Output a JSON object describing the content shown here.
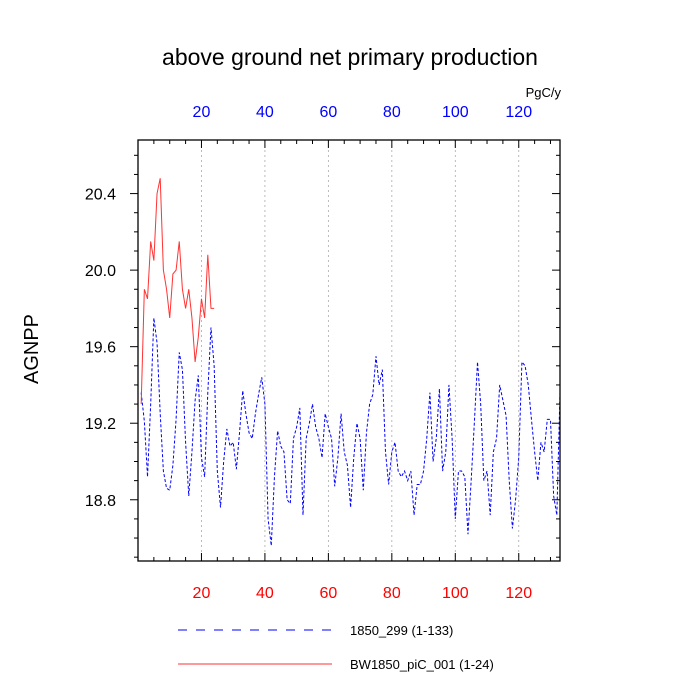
{
  "chart_data": {
    "type": "line",
    "title": "above ground net primary production",
    "ylabel": "AGNPP",
    "units": "PgC/y",
    "xlim": [
      0,
      133
    ],
    "ylim": [
      18.48,
      20.68
    ],
    "x_ticks_bottom": [
      "20",
      "40",
      "60",
      "80",
      "100",
      "120"
    ],
    "x_ticks_top": [
      "20",
      "40",
      "60",
      "80",
      "100",
      "120"
    ],
    "y_ticks": [
      "18.8",
      "19.2",
      "19.6",
      "20.0",
      "20.4"
    ],
    "series": [
      {
        "name": "1850_299 (1-133)",
        "color": "#0000ff",
        "style": "dashed",
        "x_start": 1,
        "values": [
          19.36,
          19.21,
          18.92,
          19.3,
          19.75,
          19.62,
          19.25,
          18.95,
          18.86,
          18.85,
          18.98,
          19.22,
          19.57,
          19.48,
          19.1,
          18.82,
          19.05,
          19.32,
          19.45,
          19.02,
          18.92,
          19.36,
          19.7,
          19.5,
          18.95,
          18.76,
          19.0,
          19.17,
          19.08,
          19.1,
          18.96,
          19.15,
          19.37,
          19.25,
          19.15,
          19.12,
          19.25,
          19.35,
          19.44,
          19.3,
          18.7,
          18.56,
          18.92,
          19.16,
          19.08,
          19.05,
          18.8,
          18.78,
          19.12,
          19.18,
          19.28,
          18.72,
          19.12,
          19.2,
          19.3,
          19.18,
          19.12,
          19.02,
          19.25,
          19.18,
          19.12,
          18.87,
          19.02,
          19.25,
          19.05,
          18.98,
          18.76,
          19.02,
          19.2,
          19.12,
          18.85,
          19.15,
          19.3,
          19.35,
          19.55,
          19.4,
          19.48,
          19.05,
          18.88,
          19.05,
          19.1,
          18.95,
          18.92,
          18.95,
          18.9,
          18.95,
          18.72,
          18.88,
          18.88,
          18.95,
          19.12,
          19.36,
          19.0,
          19.12,
          19.38,
          18.95,
          19.05,
          19.4,
          19.12,
          18.7,
          18.95,
          18.95,
          18.92,
          18.62,
          18.9,
          19.2,
          19.52,
          19.3,
          18.9,
          18.95,
          18.72,
          19.05,
          19.12,
          19.4,
          19.32,
          19.24,
          18.9,
          18.65,
          18.8,
          19.02,
          19.52,
          19.5,
          19.4,
          19.22,
          19.05,
          18.9,
          19.1,
          19.05,
          19.22,
          19.22,
          18.82,
          18.72,
          19.36
        ]
      },
      {
        "name": "BW1850_piC_001 (1-24)",
        "color": "#ff3333",
        "style": "solid",
        "x_start": 1,
        "values": [
          19.3,
          19.9,
          19.85,
          20.15,
          20.05,
          20.4,
          20.48,
          20.0,
          19.9,
          19.75,
          19.98,
          20.0,
          20.15,
          19.9,
          19.8,
          19.9,
          19.75,
          19.52,
          19.65,
          19.85,
          19.75,
          20.08,
          19.8,
          19.8
        ]
      }
    ]
  }
}
